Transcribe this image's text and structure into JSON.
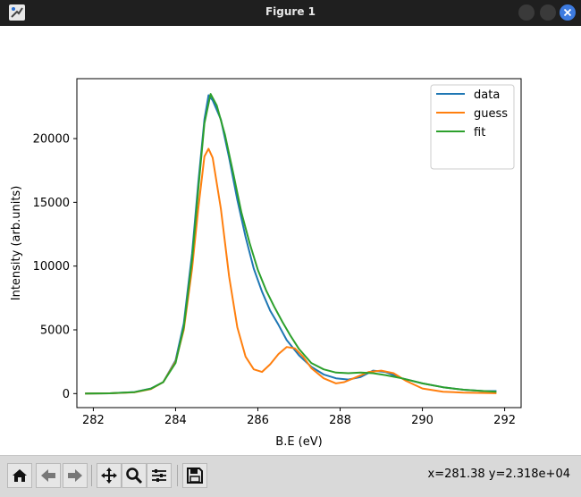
{
  "window": {
    "title": "Figure 1"
  },
  "toolbar": {
    "buttons": [
      "home-icon",
      "back-icon",
      "forward-icon",
      "pan-icon",
      "zoom-icon",
      "configure-icon",
      "save-icon"
    ],
    "coords": "x=281.38 y=2.318e+04"
  },
  "chart_data": {
    "type": "line",
    "xlabel": "B.E (eV)",
    "ylabel": "Intensity (arb.units)",
    "xlim": [
      281.6,
      292.4
    ],
    "ylim": [
      -1100,
      24700
    ],
    "xticks": [
      282,
      284,
      286,
      288,
      290,
      292
    ],
    "yticks": [
      0,
      5000,
      10000,
      15000,
      20000
    ],
    "grid": false,
    "legend": "top-right",
    "colors": {
      "data": "#1f77b4",
      "guess": "#ff7f0e",
      "fit": "#2ca02c"
    },
    "series": [
      {
        "name": "data",
        "x": [
          281.8,
          282.4,
          283.0,
          283.4,
          283.7,
          284.0,
          284.2,
          284.4,
          284.55,
          284.7,
          284.8,
          284.9,
          285.1,
          285.3,
          285.5,
          285.7,
          285.9,
          286.1,
          286.3,
          286.5,
          286.7,
          287.0,
          287.3,
          287.6,
          287.9,
          288.2,
          288.5,
          288.8,
          289.1,
          289.5,
          290.0,
          290.5,
          291.0,
          291.5,
          291.8
        ],
        "y": [
          0,
          20,
          120,
          400,
          900,
          2600,
          5500,
          11000,
          16500,
          21500,
          23400,
          23000,
          21500,
          18500,
          15200,
          12300,
          9800,
          8000,
          6500,
          5400,
          4200,
          3000,
          2100,
          1500,
          1200,
          1100,
          1300,
          1800,
          1700,
          1200,
          800,
          500,
          300,
          200,
          200
        ]
      },
      {
        "name": "guess",
        "x": [
          281.8,
          282.4,
          283.0,
          283.4,
          283.7,
          284.0,
          284.2,
          284.4,
          284.55,
          284.7,
          284.8,
          284.9,
          285.1,
          285.3,
          285.5,
          285.7,
          285.9,
          286.1,
          286.3,
          286.5,
          286.7,
          286.9,
          287.1,
          287.3,
          287.6,
          287.9,
          288.1,
          288.4,
          288.7,
          289.0,
          289.3,
          289.6,
          290.0,
          290.5,
          291.0,
          291.5,
          291.8
        ],
        "y": [
          0,
          20,
          100,
          350,
          900,
          2500,
          5000,
          9800,
          14500,
          18600,
          19200,
          18500,
          14500,
          9200,
          5200,
          2900,
          1900,
          1700,
          2300,
          3100,
          3650,
          3550,
          2900,
          2000,
          1200,
          800,
          900,
          1300,
          1700,
          1800,
          1600,
          1000,
          400,
          150,
          80,
          50,
          30
        ]
      },
      {
        "name": "fit",
        "x": [
          281.8,
          282.4,
          283.0,
          283.4,
          283.7,
          284.0,
          284.2,
          284.4,
          284.55,
          284.7,
          284.85,
          285.0,
          285.2,
          285.4,
          285.6,
          285.8,
          286.0,
          286.2,
          286.4,
          286.6,
          286.8,
          287.0,
          287.3,
          287.6,
          287.9,
          288.2,
          288.5,
          288.8,
          289.1,
          289.5,
          290.0,
          290.5,
          291.0,
          291.5,
          291.8
        ],
        "y": [
          0,
          20,
          110,
          380,
          900,
          2400,
          5200,
          10500,
          16000,
          21200,
          23500,
          22600,
          20300,
          17300,
          14200,
          11800,
          9700,
          8100,
          6800,
          5600,
          4500,
          3500,
          2400,
          1900,
          1650,
          1600,
          1650,
          1600,
          1450,
          1200,
          800,
          500,
          300,
          200,
          150
        ]
      }
    ]
  }
}
